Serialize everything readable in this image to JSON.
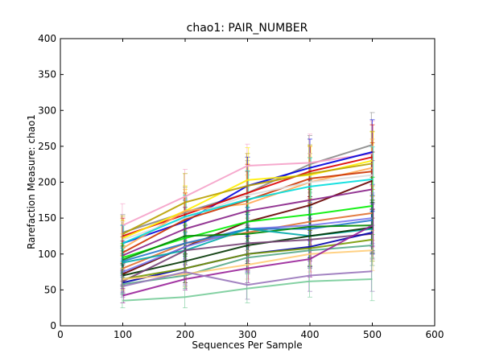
{
  "chart_data": {
    "type": "line",
    "title": "chao1: PAIR_NUMBER",
    "xlabel": "Sequences Per Sample",
    "ylabel": "Rarefaction Measure: chao1",
    "xlim": [
      0,
      600
    ],
    "ylim": [
      0,
      400
    ],
    "xticks": [
      0,
      100,
      200,
      300,
      400,
      500,
      600
    ],
    "yticks": [
      0,
      50,
      100,
      150,
      200,
      250,
      300,
      350,
      400
    ],
    "grid": false,
    "legend": "none",
    "x": [
      100,
      200,
      300,
      400,
      500
    ],
    "series": [
      {
        "color": "#888888",
        "values": [
          130,
          158,
          185,
          225,
          252
        ],
        "err": [
          25,
          35,
          45,
          40,
          45
        ]
      },
      {
        "color": "#f5a0c8",
        "values": [
          140,
          180,
          223,
          227,
          240
        ],
        "err": [
          30,
          38,
          30,
          40,
          45
        ]
      },
      {
        "color": "#0000dd",
        "values": [
          115,
          145,
          195,
          220,
          242
        ],
        "err": [
          25,
          30,
          40,
          40,
          45
        ]
      },
      {
        "color": "#dd0000",
        "values": [
          125,
          155,
          185,
          215,
          235
        ],
        "err": [
          25,
          30,
          40,
          35,
          45
        ]
      },
      {
        "color": "#ffee00",
        "values": [
          122,
          160,
          203,
          210,
          230
        ],
        "err": [
          25,
          35,
          45,
          40,
          40
        ]
      },
      {
        "color": "#b8a000",
        "values": [
          128,
          172,
          195,
          212,
          226
        ],
        "err": [
          25,
          40,
          45,
          40,
          45
        ]
      },
      {
        "color": "#ffaa55",
        "values": [
          108,
          160,
          170,
          200,
          220
        ],
        "err": [
          20,
          30,
          40,
          35,
          40
        ]
      },
      {
        "color": "#cc3300",
        "values": [
          102,
          148,
          175,
          205,
          215
        ],
        "err": [
          22,
          30,
          40,
          35,
          40
        ]
      },
      {
        "color": "#dddddd",
        "values": [
          120,
          150,
          182,
          200,
          210
        ],
        "err": [
          25,
          30,
          40,
          40,
          40
        ]
      },
      {
        "color": "#00dddd",
        "values": [
          115,
          152,
          176,
          194,
          204
        ],
        "err": [
          25,
          30,
          40,
          40,
          45
        ]
      },
      {
        "color": "#660000",
        "values": [
          72,
          110,
          145,
          168,
          202
        ],
        "err": [
          15,
          30,
          35,
          35,
          40
        ]
      },
      {
        "color": "#882288",
        "values": [
          98,
          135,
          160,
          175,
          190
        ],
        "err": [
          20,
          30,
          35,
          35,
          40
        ]
      },
      {
        "color": "#00ee00",
        "values": [
          95,
          122,
          145,
          155,
          167
        ],
        "err": [
          20,
          25,
          30,
          35,
          40
        ]
      },
      {
        "color": "#e07030",
        "values": [
          80,
          115,
          130,
          145,
          157
        ],
        "err": [
          18,
          25,
          30,
          32,
          38
        ]
      },
      {
        "color": "#7777ee",
        "values": [
          75,
          110,
          135,
          140,
          150
        ],
        "err": [
          18,
          25,
          30,
          32,
          35
        ]
      },
      {
        "color": "#2277cc",
        "values": [
          90,
          115,
          135,
          135,
          147
        ],
        "err": [
          20,
          25,
          30,
          30,
          35
        ]
      },
      {
        "color": "#008800",
        "values": [
          92,
          125,
          128,
          138,
          140
        ],
        "err": [
          20,
          25,
          30,
          30,
          35
        ]
      },
      {
        "color": "#00aaaa",
        "values": [
          88,
          105,
          135,
          125,
          135
        ],
        "err": [
          20,
          25,
          30,
          30,
          35
        ]
      },
      {
        "color": "#003300",
        "values": [
          70,
          90,
          112,
          125,
          137
        ],
        "err": [
          15,
          20,
          25,
          30,
          35
        ]
      },
      {
        "color": "#774477",
        "values": [
          62,
          105,
          115,
          120,
          128
        ],
        "err": [
          15,
          20,
          25,
          30,
          35
        ]
      },
      {
        "color": "#0000aa",
        "values": [
          60,
          80,
          100,
          110,
          130
        ],
        "err": [
          15,
          20,
          25,
          28,
          30
        ]
      },
      {
        "color": "#779900",
        "values": [
          65,
          80,
          100,
          108,
          120
        ],
        "err": [
          15,
          20,
          22,
          25,
          30
        ]
      },
      {
        "color": "#55aa88",
        "values": [
          58,
          70,
          95,
          105,
          112
        ],
        "err": [
          15,
          18,
          22,
          25,
          28
        ]
      },
      {
        "color": "#ffcc77",
        "values": [
          65,
          72,
          85,
          100,
          105
        ],
        "err": [
          15,
          18,
          20,
          25,
          28
        ]
      },
      {
        "color": "#992299",
        "values": [
          42,
          65,
          80,
          93,
          140
        ],
        "err": [
          10,
          15,
          20,
          25,
          30
        ]
      },
      {
        "color": "#9977bb",
        "values": [
          55,
          75,
          57,
          70,
          76
        ],
        "err": [
          15,
          18,
          20,
          22,
          28
        ]
      },
      {
        "color": "#77cc99",
        "values": [
          35,
          40,
          52,
          62,
          65
        ],
        "err": [
          10,
          15,
          20,
          22,
          30
        ]
      }
    ]
  }
}
